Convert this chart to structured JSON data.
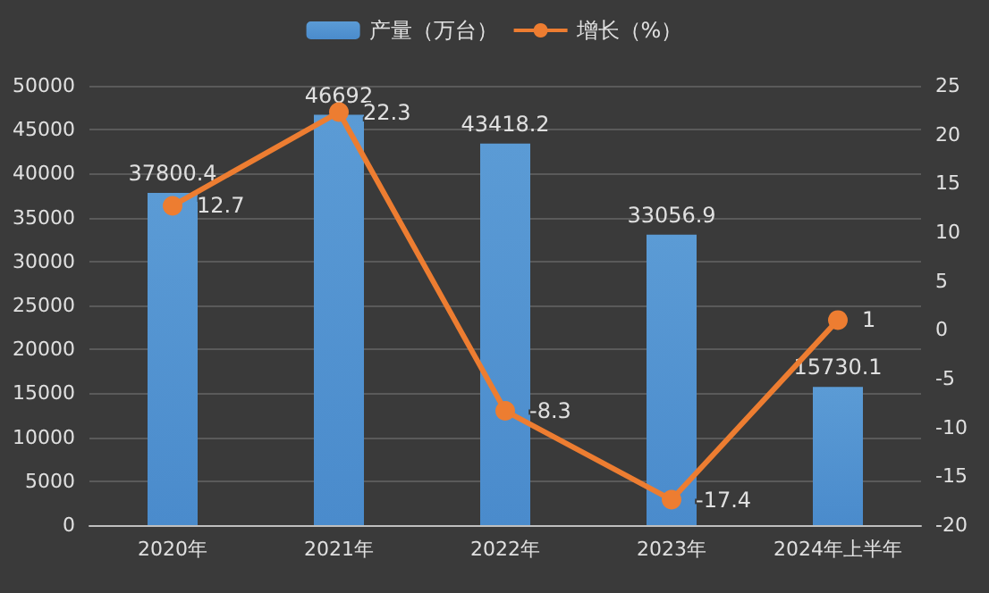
{
  "chart_data": {
    "type": "bar",
    "categories": [
      "2020年",
      "2021年",
      "2022年",
      "2023年",
      "2024年上半年"
    ],
    "series": [
      {
        "name": "产量（万台）",
        "color": "#5b9bd5",
        "values": [
          37800.4,
          46692,
          43418.2,
          33056.9,
          15730.1
        ]
      },
      {
        "name": "增长（%）",
        "type": "line",
        "axis": "y2",
        "color": "#ed7d31",
        "values": [
          12.7,
          22.3,
          -8.3,
          -17.4,
          1
        ]
      }
    ],
    "ylim": [
      0,
      50000
    ],
    "yticks": [
      0,
      5000,
      10000,
      15000,
      20000,
      25000,
      30000,
      35000,
      40000,
      45000,
      50000
    ],
    "y2lim": [
      -20,
      25
    ],
    "y2ticks": [
      -20,
      -15,
      -10,
      -5,
      0,
      5,
      10,
      15,
      20,
      25
    ],
    "data_labels": true,
    "grid": "y",
    "legend": "top",
    "marker": "circle"
  }
}
